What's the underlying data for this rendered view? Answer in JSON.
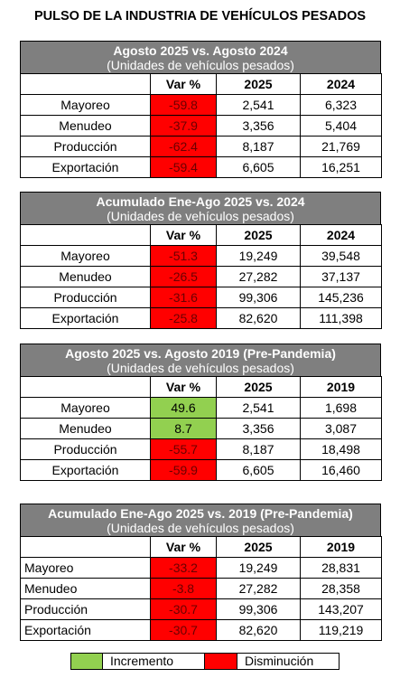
{
  "title": "PULSO DE LA INDUSTRIA DE VEHÍCULOS PESADOS",
  "colors": {
    "header_gray": "#7f7f7f",
    "increase": "#92d050",
    "decrease": "#ff0000"
  },
  "tables": [
    {
      "title": "Agosto 2025 vs. Agosto 2024",
      "subtitle": "(Unidades de vehículos pesados)",
      "columns": [
        "",
        "Var %",
        "2025",
        "2024"
      ],
      "rows": [
        {
          "label": "Mayoreo",
          "var": "-59.8",
          "v1": "2,541",
          "v2": "6,323"
        },
        {
          "label": "Menudeo",
          "var": "-37.9",
          "v1": "3,356",
          "v2": "5,404"
        },
        {
          "label": "Producción",
          "var": "-62.4",
          "v1": "8,187",
          "v2": "21,769"
        },
        {
          "label": "Exportación",
          "var": "-59.4",
          "v1": "6,605",
          "v2": "16,251"
        }
      ]
    },
    {
      "title": "Acumulado Ene-Ago 2025 vs. 2024",
      "subtitle": "(Unidades de vehículos pesados)",
      "columns": [
        "",
        "Var %",
        "2025",
        "2024"
      ],
      "rows": [
        {
          "label": "Mayoreo",
          "var": "-51.3",
          "v1": "19,249",
          "v2": "39,548"
        },
        {
          "label": "Menudeo",
          "var": "-26.5",
          "v1": "27,282",
          "v2": "37,137"
        },
        {
          "label": "Producción",
          "var": "-31.6",
          "v1": "99,306",
          "v2": "145,236"
        },
        {
          "label": "Exportación",
          "var": "-25.8",
          "v1": "82,620",
          "v2": "111,398"
        }
      ]
    },
    {
      "title": "Agosto 2025 vs. Agosto 2019 (Pre-Pandemia)",
      "subtitle": "(Unidades de vehículos pesados)",
      "columns": [
        "",
        "Var %",
        "2025",
        "2019"
      ],
      "rows": [
        {
          "label": "Mayoreo",
          "var": "49.6",
          "v1": "2,541",
          "v2": "1,698"
        },
        {
          "label": "Menudeo",
          "var": "8.7",
          "v1": "3,356",
          "v2": "3,087"
        },
        {
          "label": "Producción",
          "var": "-55.7",
          "v1": "8,187",
          "v2": "18,498"
        },
        {
          "label": "Exportación",
          "var": "-59.9",
          "v1": "6,605",
          "v2": "16,460"
        }
      ]
    },
    {
      "title": "Acumulado Ene-Ago 2025 vs. 2019 (Pre-Pandemia)",
      "subtitle": "(Unidades de vehículos pesados)",
      "columns": [
        "",
        "Var %",
        "2025",
        "2019"
      ],
      "rows": [
        {
          "label": "Mayoreo",
          "var": "-33.2",
          "v1": "19,249",
          "v2": "28,831"
        },
        {
          "label": "Menudeo",
          "var": "-3.8",
          "v1": "27,282",
          "v2": "28,358"
        },
        {
          "label": "Producción",
          "var": "-30.7",
          "v1": "99,306",
          "v2": "143,207"
        },
        {
          "label": "Exportación",
          "var": "-30.7",
          "v1": "82,620",
          "v2": "119,219"
        }
      ]
    }
  ],
  "legend": {
    "increase": "Incremento",
    "decrease": "Disminución"
  }
}
